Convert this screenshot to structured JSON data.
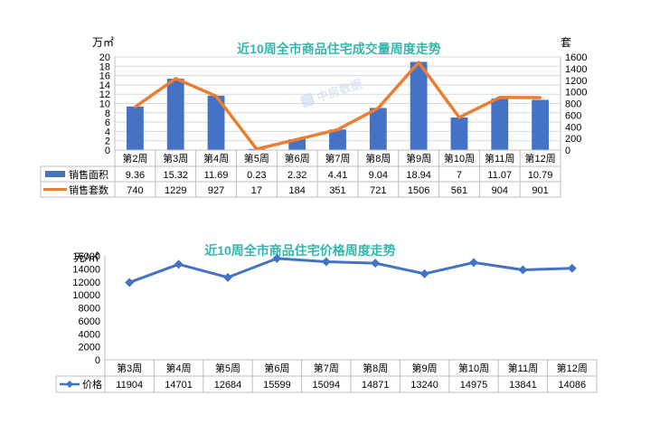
{
  "chart_data": [
    {
      "type": "bar",
      "title": "近10周全市商品住宅成交量周度走势",
      "y_left_unit": "万㎡",
      "y_right_unit": "套",
      "ylim_left": [
        0,
        20
      ],
      "ylim_right": [
        0,
        1600
      ],
      "y_left_ticks": [
        0,
        2,
        4,
        6,
        8,
        10,
        12,
        14,
        16,
        18,
        20
      ],
      "y_right_ticks": [
        0,
        200,
        400,
        600,
        800,
        1000,
        1200,
        1400,
        1600
      ],
      "categories": [
        "第2周",
        "第3周",
        "第4周",
        "第5周",
        "第6周",
        "第7周",
        "第8周",
        "第9周",
        "第10周",
        "第11周",
        "第12周"
      ],
      "series": [
        {
          "name": "销售面积",
          "kind": "bar",
          "axis": "left",
          "color": "#4472c4",
          "values": [
            9.36,
            15.32,
            11.69,
            0.23,
            2.32,
            4.41,
            9.04,
            18.94,
            7,
            11.07,
            10.79
          ],
          "labels": [
            "9.36",
            "15.32",
            "11.69",
            "0.23",
            "2.32",
            "4.41",
            "9.04",
            "18.94",
            "7",
            "11.07",
            "10.79"
          ]
        },
        {
          "name": "销售套数",
          "kind": "line",
          "axis": "right",
          "color": "#ed7d31",
          "values": [
            740,
            1229,
            927,
            17,
            184,
            351,
            721,
            1506,
            561,
            904,
            901
          ],
          "labels": [
            "740",
            "1229",
            "927",
            "17",
            "184",
            "351",
            "721",
            "1506",
            "561",
            "904",
            "901"
          ]
        }
      ],
      "watermark": "中房数据",
      "grid": true,
      "legend": "data-table"
    },
    {
      "type": "line",
      "title": "近10周全市商品住宅价格周度走势",
      "y_unit": "元/㎡",
      "ylim": [
        0,
        16000
      ],
      "y_ticks": [
        0,
        2000,
        4000,
        6000,
        8000,
        10000,
        12000,
        14000,
        16000
      ],
      "categories": [
        "第3周",
        "第4周",
        "第5周",
        "第6周",
        "第7周",
        "第8周",
        "第9周",
        "第10周",
        "第11周",
        "第12周"
      ],
      "series": [
        {
          "name": "价格",
          "color": "#4472c4",
          "values": [
            11904,
            14701,
            12684,
            15599,
            15094,
            14871,
            13240,
            14975,
            13841,
            14086
          ],
          "labels": [
            "11904",
            "14701",
            "12684",
            "15599",
            "15094",
            "14871",
            "13240",
            "14975",
            "13841",
            "14086"
          ]
        }
      ],
      "grid": false,
      "legend": "data-table"
    }
  ]
}
